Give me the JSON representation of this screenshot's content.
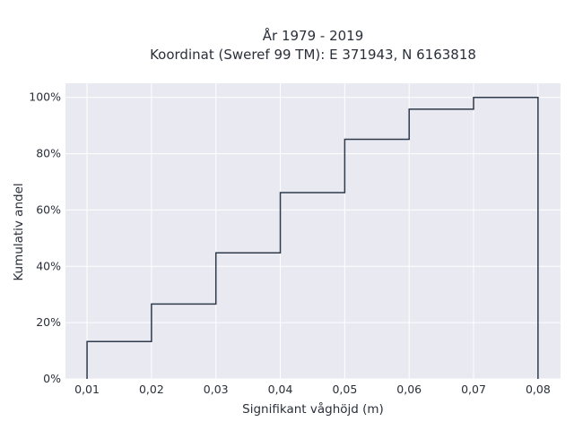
{
  "chart_data": {
    "type": "line",
    "title_line1": "År 1979 - 2019",
    "title_line2": "Koordinat (Sweref 99 TM): E 371943, N 6163818",
    "xlabel": "Signifikant våghöjd (m)",
    "ylabel": "Kumulativ andel",
    "x_tick_labels": [
      "0,01",
      "0,02",
      "0,03",
      "0,04",
      "0,05",
      "0,06",
      "0,07",
      "0,08"
    ],
    "y_tick_labels": [
      "0%",
      "20%",
      "40%",
      "60%",
      "80%",
      "100%"
    ],
    "x_ticks": [
      0.01,
      0.02,
      0.03,
      0.04,
      0.05,
      0.06,
      0.07,
      0.08
    ],
    "y_ticks": [
      0,
      0.2,
      0.4,
      0.6,
      0.8,
      1.0
    ],
    "xlim": [
      0.00665,
      0.0835
    ],
    "ylim": [
      0,
      1.05
    ],
    "grid": true,
    "step": "post",
    "line_color": "#2f3a4a",
    "plot_bg": "#e9e9f1",
    "series": [
      {
        "x": [
          0.01,
          0.01,
          0.02,
          0.03,
          0.04,
          0.05,
          0.06,
          0.07,
          0.08,
          0.08
        ],
        "y": [
          0,
          0.133,
          0.266,
          0.448,
          0.662,
          0.851,
          0.958,
          1.0,
          1.0,
          0
        ]
      }
    ]
  }
}
